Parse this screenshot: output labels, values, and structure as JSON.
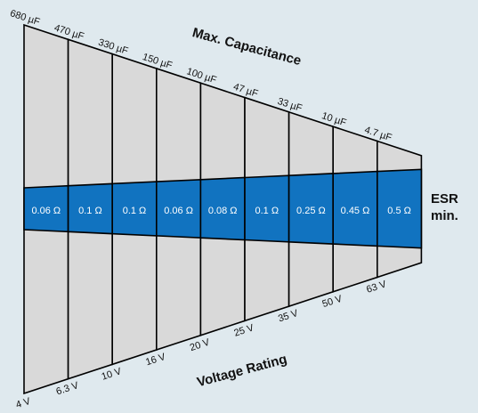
{
  "title_capacitance": "Max. Capacitance",
  "title_voltage": "Voltage Rating",
  "esr_label": [
    "ESR",
    "min."
  ],
  "capacitance": [
    "680 µF",
    "470 µF",
    "330 µF",
    "150 µF",
    "100 µF",
    "47 µF",
    "33 µF",
    "10 µF",
    "4.7 µF"
  ],
  "esr": [
    "0.06 Ω",
    "0.1 Ω",
    "0.1 Ω",
    "0.06 Ω",
    "0.08 Ω",
    "0.1 Ω",
    "0.25 Ω",
    "0.45 Ω",
    "0.5 Ω"
  ],
  "voltage": [
    "4 V",
    "6.3 V",
    "10 V",
    "16 V",
    "20 V",
    "25 V",
    "35 V",
    "50 V",
    "63 V"
  ],
  "colors": {
    "background": "#dfe9ee",
    "column_fill": "#d9d9d9",
    "esr_band": "#1173c0",
    "outline": "#000000"
  }
}
